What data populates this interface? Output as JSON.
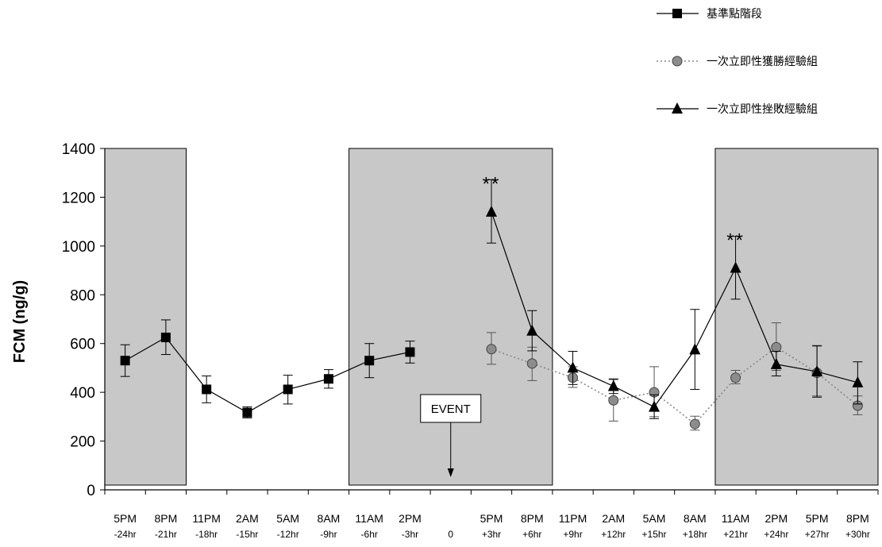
{
  "chart_data": {
    "type": "line",
    "ylabel": "FCM (ng/g)",
    "xlabel": "",
    "ylim": [
      0,
      1400
    ],
    "yticks": [
      0,
      200,
      400,
      600,
      800,
      1000,
      1200,
      1400
    ],
    "grid": false,
    "legend_position": "top-right",
    "categories": [
      {
        "time": "5PM",
        "offset": "-24hr"
      },
      {
        "time": "8PM",
        "offset": "-21hr"
      },
      {
        "time": "11PM",
        "offset": "-18hr"
      },
      {
        "time": "2AM",
        "offset": "-15hr"
      },
      {
        "time": "5AM",
        "offset": "-12hr"
      },
      {
        "time": "8AM",
        "offset": "-9hr"
      },
      {
        "time": "11AM",
        "offset": "-6hr"
      },
      {
        "time": "2PM",
        "offset": "-3hr"
      },
      {
        "time": "",
        "offset": "0"
      },
      {
        "time": "5PM",
        "offset": "+3hr"
      },
      {
        "time": "8PM",
        "offset": "+6hr"
      },
      {
        "time": "11PM",
        "offset": "+9hr"
      },
      {
        "time": "2AM",
        "offset": "+12hr"
      },
      {
        "time": "5AM",
        "offset": "+15hr"
      },
      {
        "time": "8AM",
        "offset": "+18hr"
      },
      {
        "time": "11AM",
        "offset": "+21hr"
      },
      {
        "time": "2PM",
        "offset": "+24hr"
      },
      {
        "time": "5PM",
        "offset": "+27hr"
      },
      {
        "time": "8PM",
        "offset": "+30hr"
      }
    ],
    "shaded_regions": [
      {
        "from_index": -0.5,
        "to_index": 1.5
      },
      {
        "from_index": 5.5,
        "to_index": 10.5
      },
      {
        "from_index": 14.5,
        "to_index": 18.5
      }
    ],
    "event": {
      "label": "EVENT",
      "index": 8
    },
    "annotations": [
      {
        "text": "**",
        "index": 9,
        "y": 1300
      },
      {
        "text": "**",
        "index": 15,
        "y": 1070
      }
    ],
    "series": [
      {
        "name": "基準點階段",
        "marker": "square",
        "line": "solid",
        "color": "#000000",
        "points": [
          {
            "i": 0,
            "y": 530,
            "lo": 465,
            "hi": 595
          },
          {
            "i": 1,
            "y": 625,
            "lo": 555,
            "hi": 697
          },
          {
            "i": 2,
            "y": 412,
            "lo": 357,
            "hi": 467
          },
          {
            "i": 3,
            "y": 317,
            "lo": 295,
            "hi": 340
          },
          {
            "i": 4,
            "y": 412,
            "lo": 352,
            "hi": 470
          },
          {
            "i": 5,
            "y": 455,
            "lo": 417,
            "hi": 493
          },
          {
            "i": 6,
            "y": 530,
            "lo": 460,
            "hi": 600
          },
          {
            "i": 7,
            "y": 565,
            "lo": 520,
            "hi": 610
          }
        ]
      },
      {
        "name": "一次立即性獲勝經驗組",
        "marker": "circle",
        "line": "dotted",
        "color": "#888888",
        "points": [
          {
            "i": 9,
            "y": 577,
            "lo": 515,
            "hi": 645
          },
          {
            "i": 10,
            "y": 518,
            "lo": 448,
            "hi": 585
          },
          {
            "i": 11,
            "y": 460,
            "lo": 420,
            "hi": 505
          },
          {
            "i": 12,
            "y": 367,
            "lo": 282,
            "hi": 452
          },
          {
            "i": 13,
            "y": 400,
            "lo": 300,
            "hi": 505
          },
          {
            "i": 14,
            "y": 270,
            "lo": 245,
            "hi": 302
          },
          {
            "i": 15,
            "y": 460,
            "lo": 435,
            "hi": 490
          },
          {
            "i": 16,
            "y": 585,
            "lo": 490,
            "hi": 685
          },
          {
            "i": 17,
            "y": 480,
            "lo": 385,
            "hi": 592
          },
          {
            "i": 18,
            "y": 345,
            "lo": 308,
            "hi": 385
          }
        ]
      },
      {
        "name": "一次立即性挫敗經驗組",
        "marker": "triangle",
        "line": "solid",
        "color": "#000000",
        "points": [
          {
            "i": 9,
            "y": 1140,
            "lo": 1012,
            "hi": 1272
          },
          {
            "i": 10,
            "y": 652,
            "lo": 570,
            "hi": 735
          },
          {
            "i": 11,
            "y": 500,
            "lo": 432,
            "hi": 568
          },
          {
            "i": 12,
            "y": 425,
            "lo": 395,
            "hi": 455
          },
          {
            "i": 13,
            "y": 340,
            "lo": 292,
            "hi": 390
          },
          {
            "i": 14,
            "y": 575,
            "lo": 412,
            "hi": 740
          },
          {
            "i": 15,
            "y": 910,
            "lo": 782,
            "hi": 1040
          },
          {
            "i": 16,
            "y": 515,
            "lo": 467,
            "hi": 568
          },
          {
            "i": 17,
            "y": 485,
            "lo": 380,
            "hi": 590
          },
          {
            "i": 18,
            "y": 440,
            "lo": 352,
            "hi": 525
          }
        ]
      }
    ]
  }
}
